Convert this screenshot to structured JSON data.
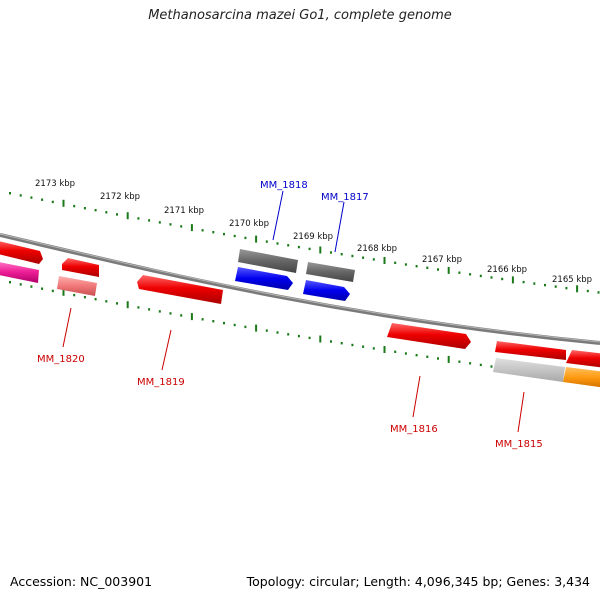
{
  "title": "Methanosarcina mazei Go1, complete genome",
  "accession_text": "Accession: NC_003901",
  "summary_text": "Topology: circular; Length: 4,096,345 bp; Genes: 3,434",
  "colors": {
    "backbone": "#7a7a7a",
    "ticks": "#1a7a1a",
    "label_red": "#cc0000",
    "label_blue": "#0000cc"
  },
  "kbp_labels": [
    "2173 kbp",
    "2172 kbp",
    "2171 kbp",
    "2170 kbp",
    "2169 kbp",
    "2168 kbp",
    "2167 kbp",
    "2166 kbp",
    "2165 kbp"
  ],
  "gene_labels": [
    "MM_1818",
    "MM_1817",
    "MM_1820",
    "MM_1819",
    "MM_1816",
    "MM_1815"
  ]
}
